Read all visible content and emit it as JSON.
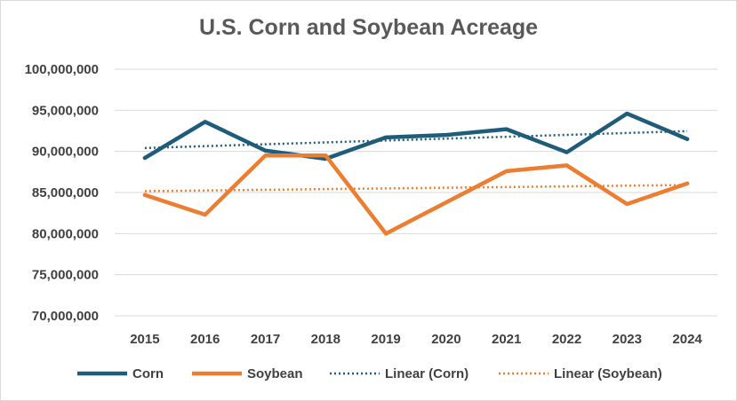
{
  "chart_data": {
    "type": "line",
    "title": "U.S. Corn and Soybean Acreage",
    "xlabel": "",
    "ylabel": "",
    "categories": [
      "2015",
      "2016",
      "2017",
      "2018",
      "2019",
      "2020",
      "2021",
      "2022",
      "2023",
      "2024"
    ],
    "ylim": [
      70000000,
      100000000
    ],
    "yticks": [
      70000000,
      75000000,
      80000000,
      85000000,
      90000000,
      95000000,
      100000000
    ],
    "ytick_labels": [
      "70,000,000",
      "75,000,000",
      "80,000,000",
      "85,000,000",
      "90,000,000",
      "95,000,000",
      "100,000,000"
    ],
    "grid": "horizontal",
    "legend_position": "bottom",
    "series": [
      {
        "name": "Corn",
        "color": "#1f5c7a",
        "style": "solid",
        "values": [
          89200000,
          93600000,
          90100000,
          89100000,
          91700000,
          92000000,
          92700000,
          89900000,
          94600000,
          91500000
        ]
      },
      {
        "name": "Soybean",
        "color": "#ed7d31",
        "style": "solid",
        "values": [
          84700000,
          82300000,
          89500000,
          89500000,
          80000000,
          83800000,
          87600000,
          88300000,
          83600000,
          86100000
        ]
      },
      {
        "name": "Linear (Corn)",
        "color": "#1f5c7a",
        "style": "dotted",
        "trend_of": "Corn"
      },
      {
        "name": "Linear (Soybean)",
        "color": "#ed7d31",
        "style": "dotted",
        "trend_of": "Soybean"
      }
    ]
  }
}
